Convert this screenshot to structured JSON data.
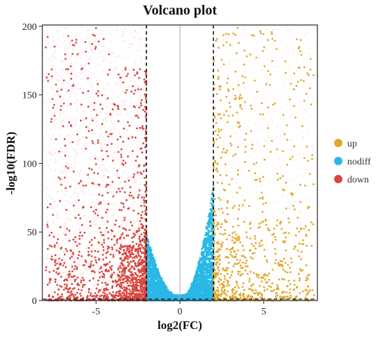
{
  "chart_data": {
    "type": "scatter",
    "title": "Volcano plot",
    "xlabel": "log2(FC)",
    "ylabel": "-log10(FDR)",
    "xlim": [
      -8.2,
      8.2
    ],
    "ylim": [
      0,
      201
    ],
    "x_ticks": [
      -5,
      0,
      5
    ],
    "x_tick_labels": [
      "-5",
      "0",
      "5"
    ],
    "y_ticks": [
      0,
      50,
      100,
      150,
      200
    ],
    "y_tick_labels": [
      "0",
      "50",
      "100",
      "150",
      "200"
    ],
    "thresholds": {
      "x": [
        -2,
        2
      ],
      "style": "dashed",
      "center_line_x": 0,
      "bottom_line_y": 0
    },
    "grid": false,
    "legend": {
      "position": "right",
      "entries": [
        "up",
        "nodiff",
        "down"
      ]
    },
    "series": [
      {
        "name": "up",
        "color": "#e0a82e",
        "x_range": [
          2,
          8
        ],
        "y_range": [
          0,
          200
        ]
      },
      {
        "name": "nodiff",
        "color": "#29b8e6",
        "x_range": [
          -2,
          2
        ],
        "y_range": [
          0,
          88
        ]
      },
      {
        "name": "down",
        "color": "#d9473f",
        "x_range": [
          -8,
          -2
        ],
        "y_range": [
          0,
          200
        ]
      }
    ]
  }
}
